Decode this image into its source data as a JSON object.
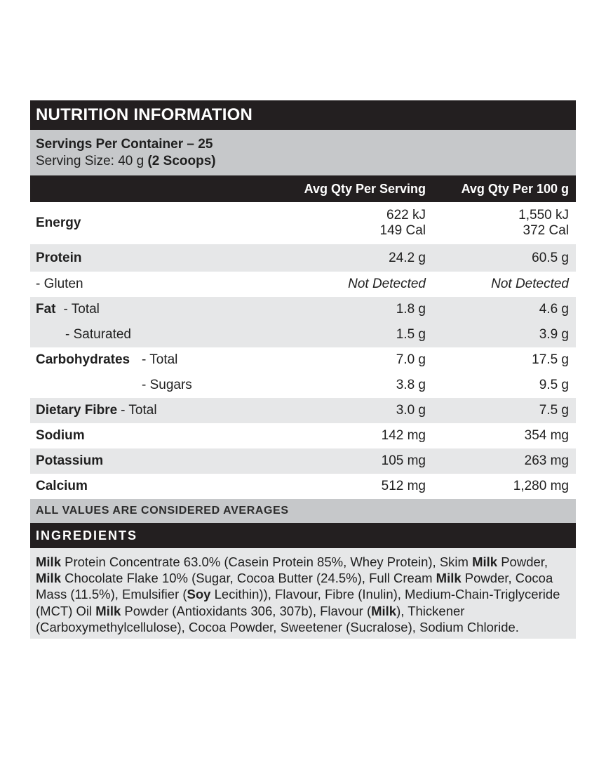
{
  "title": "NUTRITION INFORMATION",
  "servings_per_container": "Servings Per Container – 25",
  "serving_size_prefix": "Serving Size: 40 g ",
  "serving_size_bold": "(2 Scoops)",
  "headers": {
    "per_serving": "Avg Qty Per Serving",
    "per_100g": "Avg Qty Per 100 g"
  },
  "rows": {
    "energy": {
      "label": "Energy",
      "serving_kj": "622 kJ",
      "serving_cal": "149 Cal",
      "per100_kj": "1,550 kJ",
      "per100_cal": "372 Cal"
    },
    "protein": {
      "label": "Protein",
      "serving": "24.2 g",
      "per100": "60.5 g"
    },
    "gluten": {
      "label": "- Gluten",
      "serving": "Not Detected",
      "per100": "Not Detected"
    },
    "fat_total": {
      "label": "Fat",
      "sub": "- Total",
      "serving": "1.8 g",
      "per100": "4.6 g"
    },
    "fat_saturated": {
      "sub": "- Saturated",
      "serving": "1.5 g",
      "per100": "3.9 g"
    },
    "carb_total": {
      "label": "Carbohydrates",
      "sub": "- Total",
      "serving": "7.0 g",
      "per100": "17.5 g"
    },
    "carb_sugars": {
      "sub": "- Sugars",
      "serving": "3.8 g",
      "per100": "9.5 g"
    },
    "fibre": {
      "label": "Dietary Fibre",
      "sub": "- Total",
      "serving": "3.0 g",
      "per100": "7.5 g"
    },
    "sodium": {
      "label": "Sodium",
      "serving": "142 mg",
      "per100": "354 mg"
    },
    "potassium": {
      "label": "Potassium",
      "serving": "105 mg",
      "per100": "263 mg"
    },
    "calcium": {
      "label": "Calcium",
      "serving": "512 mg",
      "per100": "1,280 mg"
    }
  },
  "averages_note": "ALL VALUES ARE CONSIDERED AVERAGES",
  "ingredients_title": "INGREDIENTS",
  "ingredients": {
    "s1": "Milk",
    "s2": " Protein Concentrate 63.0% (Casein Protein 85%, Whey Protein), Skim ",
    "s3": "Milk",
    "s4": " Powder, ",
    "s5": "Milk",
    "s6": " Chocolate Flake 10% (Sugar, Cocoa Butter (24.5%), Full Cream ",
    "s7": "Milk",
    "s8": " Powder, Cocoa Mass (11.5%), Emulsifier (",
    "s9": "Soy",
    "s10": " Lecithin)), Flavour, Fibre (Inulin), Medium-Chain-Triglyceride (MCT) Oil ",
    "s11": "Milk",
    "s12": " Powder (Antioxidants 306, 307b), Flavour (",
    "s13": "Milk",
    "s14": "), Thickener (Carboxymethylcellulose), Cocoa Powder, Sweetener (Sucralose), Sodium Chloride."
  }
}
